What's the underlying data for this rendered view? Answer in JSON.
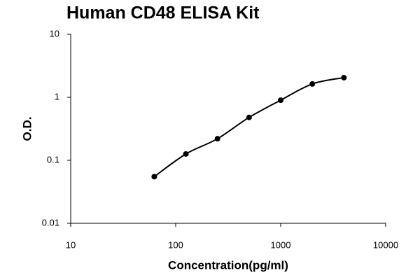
{
  "chart_data": {
    "type": "line",
    "title": "Human CD48 ELISA Kit",
    "x_label": "Concentration(pg/ml)",
    "y_label": "O.D.",
    "x": [
      62.5,
      125,
      250,
      500,
      1000,
      2000,
      4000
    ],
    "values": [
      0.055,
      0.126,
      0.22,
      0.48,
      0.9,
      1.63,
      2.05
    ],
    "color": "#000000",
    "xscale": "log",
    "yscale": "log",
    "xlim": [
      10,
      10000
    ],
    "ylim": [
      0.01,
      10
    ],
    "xticks": [
      10,
      100,
      1000,
      10000
    ],
    "yticks": [
      0.01,
      0.1,
      1,
      10
    ],
    "grid": false
  }
}
